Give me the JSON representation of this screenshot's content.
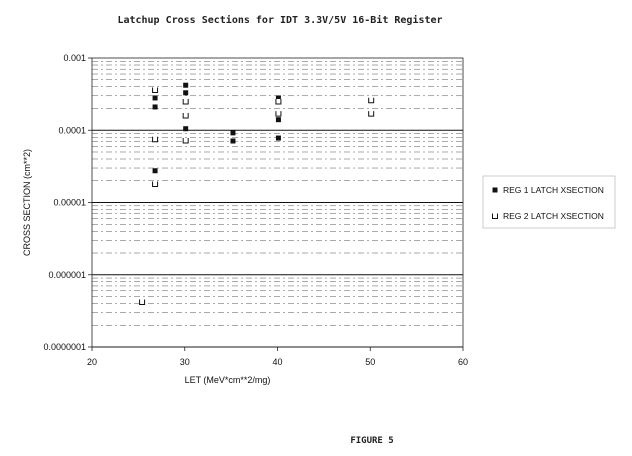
{
  "chart_data": {
    "type": "scatter",
    "title": "Latchup Cross Sections for IDT 3.3V/5V 16-Bit Register",
    "xlabel": "LET (MeV*cm**2/mg)",
    "ylabel": "CROSS SECTION (cm**2)",
    "xlim": [
      20,
      60
    ],
    "ylim": [
      1e-07,
      0.001
    ],
    "yscale": "log",
    "x_ticks": [
      20,
      30,
      40,
      50,
      60
    ],
    "y_ticks": [
      {
        "value": 0.001,
        "label": "0.001"
      },
      {
        "value": 0.0001,
        "label": "0.0001"
      },
      {
        "value": 1e-05,
        "label": "0.00001"
      },
      {
        "value": 1e-06,
        "label": "0.000001"
      },
      {
        "value": 1e-07,
        "label": "0.0000001"
      }
    ],
    "grid": true,
    "legend_position": "right",
    "series": [
      {
        "name": "REG 1 LATCH XSECTION",
        "marker": "filled-square",
        "points": [
          {
            "x": 26.8,
            "y": 0.00028
          },
          {
            "x": 26.8,
            "y": 0.00021
          },
          {
            "x": 26.8,
            "y": 2.75e-05
          },
          {
            "x": 30.1,
            "y": 0.00042
          },
          {
            "x": 30.1,
            "y": 0.00033
          },
          {
            "x": 30.1,
            "y": 0.000105
          },
          {
            "x": 35.2,
            "y": 9.2e-05
          },
          {
            "x": 35.2,
            "y": 7.1e-05
          },
          {
            "x": 40.1,
            "y": 0.00028
          },
          {
            "x": 40.1,
            "y": 0.00014
          },
          {
            "x": 40.1,
            "y": 7.8e-05
          }
        ]
      },
      {
        "name": "REG 2 LATCH XSECTION",
        "marker": "open-square",
        "points": [
          {
            "x": 26.8,
            "y": 0.00036
          },
          {
            "x": 26.8,
            "y": 7.5e-05
          },
          {
            "x": 26.8,
            "y": 1.8e-05
          },
          {
            "x": 30.1,
            "y": 0.00025
          },
          {
            "x": 30.1,
            "y": 0.00016
          },
          {
            "x": 30.1,
            "y": 7.2e-05
          },
          {
            "x": 40.1,
            "y": 0.00025
          },
          {
            "x": 40.1,
            "y": 0.00017
          },
          {
            "x": 50.1,
            "y": 0.00026
          },
          {
            "x": 50.1,
            "y": 0.00017
          },
          {
            "x": 25.4,
            "y": 4.2e-07
          }
        ]
      }
    ]
  },
  "footer": {
    "figure_label": "FIGURE 5"
  }
}
